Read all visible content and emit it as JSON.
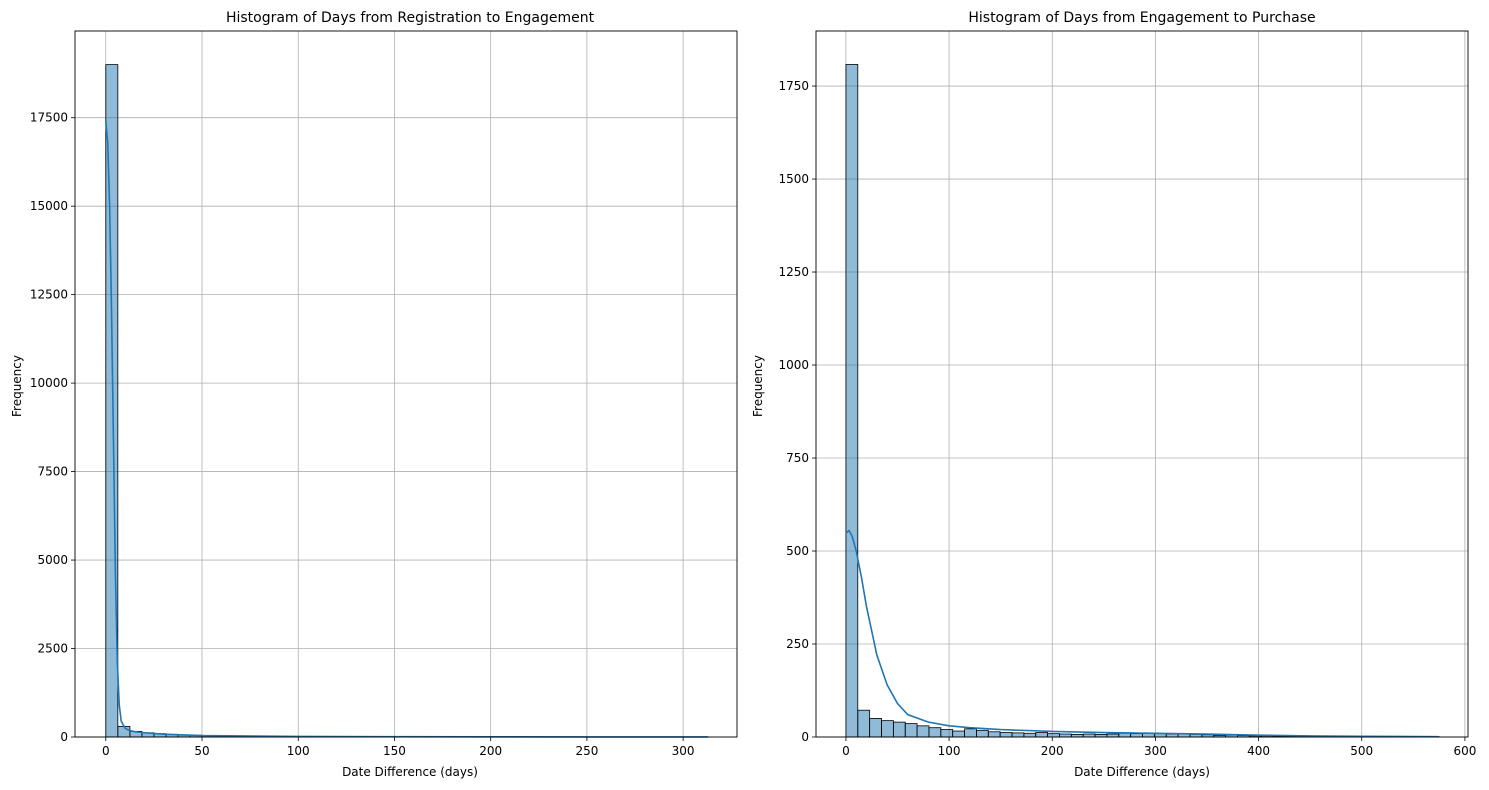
{
  "chart_data": [
    {
      "type": "bar",
      "title": "Histogram of Days from Registration to Engagement",
      "xlabel": "Date Difference (days)",
      "ylabel": "Frequency",
      "xlim": [
        -16,
        328
      ],
      "ylim": [
        0,
        19950
      ],
      "xticks": [
        0,
        50,
        100,
        150,
        200,
        250,
        300
      ],
      "yticks": [
        0,
        2500,
        5000,
        7500,
        10000,
        12500,
        15000,
        17500
      ],
      "grid": true,
      "bin_width": 6.26,
      "bin_start": 0,
      "values": [
        19000,
        300,
        160,
        120,
        95,
        75,
        60,
        50,
        42,
        36,
        30,
        26,
        22,
        19,
        17,
        15,
        13,
        12,
        10,
        9,
        8,
        7,
        7,
        6,
        5,
        5,
        4,
        4,
        3,
        3,
        3,
        3,
        2,
        2,
        2,
        2,
        2,
        1,
        1,
        1,
        1,
        1,
        1,
        1,
        1,
        1,
        1,
        1,
        1,
        1
      ],
      "kde": {
        "x": [
          0,
          1,
          2,
          3,
          4,
          5,
          6,
          7,
          8,
          10,
          12,
          15,
          20,
          30,
          50,
          100,
          150,
          200,
          250,
          313
        ],
        "y": [
          17400,
          16800,
          15000,
          12000,
          8300,
          4600,
          2100,
          900,
          450,
          250,
          190,
          150,
          120,
          80,
          40,
          15,
          8,
          5,
          3,
          1
        ]
      },
      "color": "#1f77b4"
    },
    {
      "type": "bar",
      "title": "Histogram of Days from Engagement to Purchase",
      "xlabel": "Date Difference (days)",
      "ylabel": "Frequency",
      "xlim": [
        -29,
        603
      ],
      "ylim": [
        0,
        1898
      ],
      "xticks": [
        0,
        100,
        200,
        300,
        400,
        500,
        600
      ],
      "yticks": [
        0,
        250,
        500,
        750,
        1000,
        1250,
        1500,
        1750
      ],
      "grid": true,
      "bin_width": 11.5,
      "bin_start": 0,
      "values": [
        1808,
        72,
        50,
        44,
        40,
        36,
        30,
        25,
        20,
        16,
        22,
        18,
        14,
        12,
        11,
        10,
        12,
        9,
        8,
        7,
        8,
        7,
        8,
        10,
        9,
        10,
        9,
        8,
        8,
        7,
        6,
        4,
        5,
        4,
        3,
        3,
        2,
        2,
        2,
        2,
        2,
        1,
        1,
        1,
        1,
        1,
        1,
        1,
        1,
        1
      ],
      "kde": {
        "x": [
          0,
          3,
          6,
          10,
          15,
          20,
          30,
          40,
          50,
          60,
          80,
          100,
          120,
          150,
          200,
          250,
          300,
          350,
          400,
          450,
          500,
          574
        ],
        "y": [
          548,
          555,
          540,
          500,
          430,
          350,
          220,
          140,
          90,
          60,
          40,
          30,
          25,
          20,
          15,
          12,
          10,
          8,
          5,
          3,
          2,
          1
        ]
      },
      "color": "#1f77b4"
    }
  ]
}
